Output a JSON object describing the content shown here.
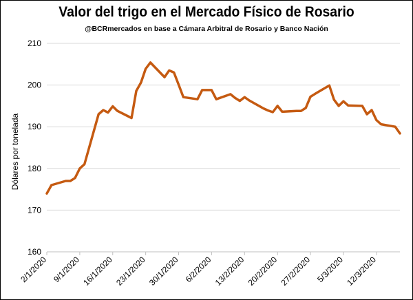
{
  "chart_data": {
    "type": "line",
    "title": "Valor del trigo en el Mercado Físico de Rosario",
    "subtitle": "@BCRmercados en base a Cámara Arbitral de Rosario y Banco Nación",
    "xlabel": "",
    "ylabel": "Dólares por tonelada",
    "ylim": [
      160,
      210
    ],
    "yticks": [
      160,
      170,
      180,
      190,
      200,
      210
    ],
    "xlim": [
      "2020-01-02",
      "2020-03-17"
    ],
    "xticks": [
      {
        "date": "2020-01-02",
        "label": "2/1/2020"
      },
      {
        "date": "2020-01-09",
        "label": "9/1/2020"
      },
      {
        "date": "2020-01-16",
        "label": "16/1/2020"
      },
      {
        "date": "2020-01-23",
        "label": "23/1/2020"
      },
      {
        "date": "2020-01-30",
        "label": "30/1/2020"
      },
      {
        "date": "2020-02-06",
        "label": "6/2/2020"
      },
      {
        "date": "2020-02-13",
        "label": "13/2/2020"
      },
      {
        "date": "2020-02-20",
        "label": "20/2/2020"
      },
      {
        "date": "2020-02-27",
        "label": "27/2/2020"
      },
      {
        "date": "2020-03-05",
        "label": "5/3/2020"
      },
      {
        "date": "2020-03-12",
        "label": "12/3/2020"
      }
    ],
    "grid": {
      "horizontal": true,
      "vertical": false
    },
    "line_color": "#C55A11",
    "series": [
      {
        "x": [
          "2020-01-02",
          "2020-01-03",
          "2020-01-06",
          "2020-01-07",
          "2020-01-08",
          "2020-01-09",
          "2020-01-10",
          "2020-01-13",
          "2020-01-14",
          "2020-01-15",
          "2020-01-16",
          "2020-01-17",
          "2020-01-20",
          "2020-01-21",
          "2020-01-22",
          "2020-01-23",
          "2020-01-24",
          "2020-01-27",
          "2020-01-28",
          "2020-01-29",
          "2020-01-30",
          "2020-01-31",
          "2020-02-03",
          "2020-02-04",
          "2020-02-05",
          "2020-02-06",
          "2020-02-07",
          "2020-02-10",
          "2020-02-11",
          "2020-02-12",
          "2020-02-13",
          "2020-02-14",
          "2020-02-17",
          "2020-02-18",
          "2020-02-19",
          "2020-02-20",
          "2020-02-21",
          "2020-02-24",
          "2020-02-25",
          "2020-02-26",
          "2020-02-27",
          "2020-02-28",
          "2020-03-02",
          "2020-03-03",
          "2020-03-04",
          "2020-03-05",
          "2020-03-06",
          "2020-03-09",
          "2020-03-10",
          "2020-03-11",
          "2020-03-12",
          "2020-03-13",
          "2020-03-16",
          "2020-03-17"
        ],
        "values": [
          174.0,
          176.0,
          177.0,
          177.0,
          177.7,
          180.0,
          181.0,
          193.0,
          194.0,
          193.4,
          194.9,
          193.8,
          192.1,
          198.6,
          200.6,
          203.9,
          205.4,
          201.9,
          203.5,
          203.0,
          200.1,
          197.1,
          196.6,
          198.8,
          198.8,
          198.8,
          196.6,
          197.8,
          196.9,
          196.2,
          197.1,
          196.3,
          194.4,
          193.9,
          193.5,
          195.0,
          193.6,
          193.8,
          193.8,
          194.5,
          197.2,
          197.9,
          199.9,
          196.5,
          195.0,
          196.1,
          195.1,
          195.0,
          193.0,
          194.0,
          191.6,
          190.6,
          190.0,
          188.4
        ]
      }
    ]
  }
}
